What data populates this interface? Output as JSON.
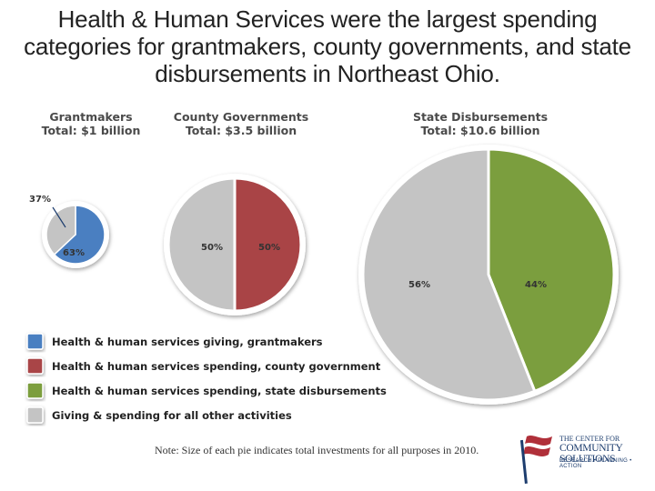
{
  "headline": {
    "line1": "Health & Human Services were the largest spending",
    "line2": "categories for grantmakers, county governments, and state",
    "line3": "disbursements in Northeast Ohio."
  },
  "colors": {
    "health_grantmakers": "#4a7fc1",
    "health_county": "#a94446",
    "health_state": "#7b9e3e",
    "other": "#c4c4c4"
  },
  "chart_data": [
    {
      "type": "pie",
      "title": "Grantmakers",
      "subtitle": "Total: $1 billion",
      "slices": [
        {
          "label": "63%",
          "value": 63,
          "color": "#4a7fc1"
        },
        {
          "label": "37%",
          "value": 37,
          "color": "#c4c4c4"
        }
      ]
    },
    {
      "type": "pie",
      "title": "County Governments",
      "subtitle": "Total: $3.5 billion",
      "slices": [
        {
          "label": "50%",
          "value": 50,
          "color": "#a94446"
        },
        {
          "label": "50%",
          "value": 50,
          "color": "#c4c4c4"
        }
      ]
    },
    {
      "type": "pie",
      "title": "State Disbursements",
      "subtitle": "Total: $10.6 billion",
      "slices": [
        {
          "label": "44%",
          "value": 44,
          "color": "#7b9e3e"
        },
        {
          "label": "56%",
          "value": 56,
          "color": "#c4c4c4"
        }
      ]
    }
  ],
  "legend": [
    {
      "label": "Health & human services giving, grantmakers",
      "color": "#4a7fc1"
    },
    {
      "label": "Health & human services spending, county government",
      "color": "#a94446"
    },
    {
      "label": "Health & human services spending, state disbursements",
      "color": "#7b9e3e"
    },
    {
      "label": "Giving & spending for all other activities",
      "color": "#c4c4c4"
    }
  ],
  "note": "Note: Size of each pie indicates total investments for all purposes in 2010.",
  "logo": {
    "line1": "THE CENTER FOR",
    "line2": "COMMUNITY SOLUTIONS",
    "line3": "RESEARCH • PLANNING • ACTION"
  }
}
